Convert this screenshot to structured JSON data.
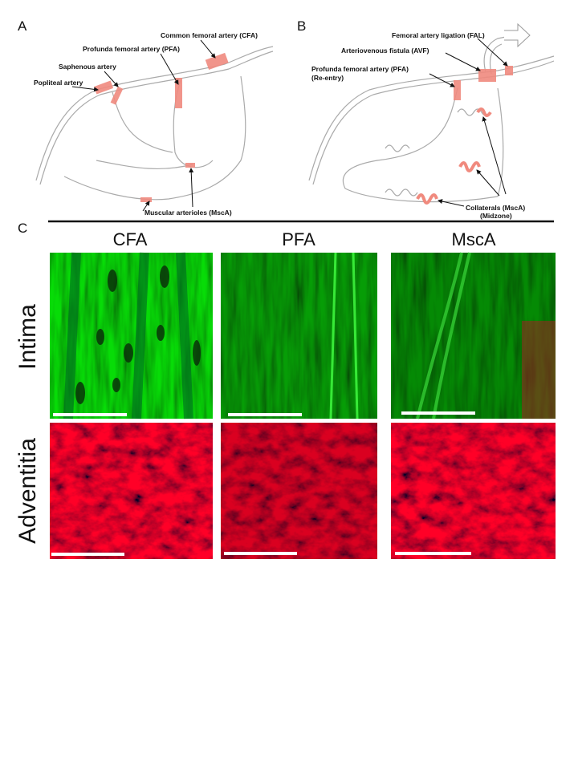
{
  "panel_a": {
    "letter": "A",
    "labels": [
      "Common femoral artery (CFA)",
      "Profunda femoral artery (PFA)",
      "Saphenous artery",
      "Popliteal artery",
      "Muscular arterioles (MscA)"
    ]
  },
  "panel_b": {
    "letter": "B",
    "labels": [
      "Femoral artery ligation (FAL)",
      "Arteriovenous fistula (AVF)",
      "Profunda femoral artery (PFA)",
      "(Re-entry)",
      "Collaterals (MscA)",
      "(Midzone)"
    ]
  },
  "panel_c": {
    "letter": "C",
    "columns": [
      "CFA",
      "PFA",
      "MscA"
    ],
    "rows": [
      "Intima",
      "Adventitia"
    ]
  }
}
